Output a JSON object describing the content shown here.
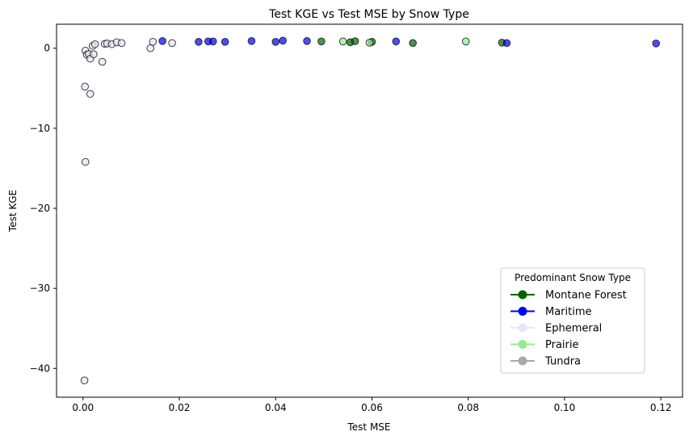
{
  "chart_data": {
    "type": "scatter",
    "title": "Test KGE vs Test MSE by Snow Type",
    "xlabel": "Test MSE",
    "ylabel": "Test KGE",
    "xlim": [
      -0.0055,
      0.1245
    ],
    "ylim": [
      -43.6,
      3.0
    ],
    "xticks": [
      0.0,
      0.02,
      0.04,
      0.06,
      0.08,
      0.1,
      0.12
    ],
    "xtick_labels": [
      "0.00",
      "0.02",
      "0.04",
      "0.06",
      "0.08",
      "0.10",
      "0.12"
    ],
    "yticks": [
      0,
      -10,
      -20,
      -30,
      -40
    ],
    "ytick_labels": [
      "0",
      "−10",
      "−20",
      "−30",
      "−40"
    ],
    "grid": false,
    "legend": {
      "title": "Predominant Snow Type",
      "placement": "lower-right"
    },
    "series": [
      {
        "name": "Montane Forest",
        "color": "#006400",
        "points": [
          [
            0.0495,
            0.85
          ],
          [
            0.0555,
            0.75
          ],
          [
            0.0565,
            0.88
          ],
          [
            0.06,
            0.8
          ],
          [
            0.0685,
            0.65
          ],
          [
            0.087,
            0.7
          ]
        ]
      },
      {
        "name": "Maritime",
        "color": "#0000ff",
        "points": [
          [
            0.0165,
            0.9
          ],
          [
            0.024,
            0.8
          ],
          [
            0.026,
            0.85
          ],
          [
            0.027,
            0.85
          ],
          [
            0.0295,
            0.8
          ],
          [
            0.035,
            0.9
          ],
          [
            0.04,
            0.8
          ],
          [
            0.0415,
            0.95
          ],
          [
            0.0465,
            0.9
          ],
          [
            0.065,
            0.85
          ],
          [
            0.088,
            0.65
          ],
          [
            0.119,
            0.6
          ]
        ]
      },
      {
        "name": "Ephemeral",
        "color": "#e6e6fa",
        "points": [
          [
            0.0003,
            -41.5
          ],
          [
            0.0005,
            -14.2
          ],
          [
            0.0004,
            -4.8
          ],
          [
            0.0015,
            -5.7
          ],
          [
            0.0005,
            -0.3
          ],
          [
            0.0008,
            -0.8
          ],
          [
            0.0012,
            -0.7
          ],
          [
            0.0015,
            -1.3
          ],
          [
            0.002,
            0.3
          ],
          [
            0.0022,
            -0.75
          ],
          [
            0.0025,
            0.5
          ],
          [
            0.004,
            -1.7
          ],
          [
            0.0045,
            0.55
          ],
          [
            0.005,
            0.6
          ],
          [
            0.006,
            0.5
          ],
          [
            0.007,
            0.75
          ],
          [
            0.008,
            0.65
          ],
          [
            0.014,
            0.0
          ],
          [
            0.0145,
            0.8
          ],
          [
            0.0185,
            0.65
          ]
        ]
      },
      {
        "name": "Prairie",
        "color": "#90ee90",
        "points": [
          [
            0.054,
            0.85
          ],
          [
            0.0595,
            0.7
          ],
          [
            0.0795,
            0.85
          ]
        ]
      },
      {
        "name": "Tundra",
        "color": "#a9a9a9",
        "points": []
      }
    ]
  }
}
